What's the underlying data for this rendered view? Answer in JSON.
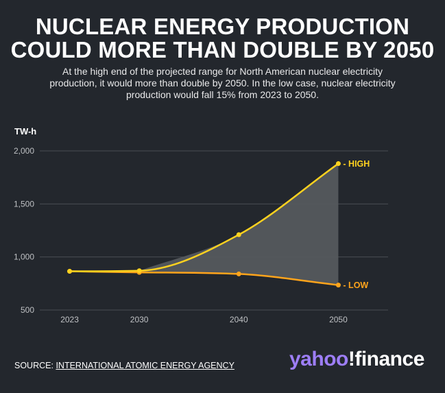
{
  "header": {
    "title_line1": "NUCLEAR ENERGY PRODUCTION",
    "title_line2": "COULD MORE THAN DOUBLE BY 2050",
    "subtitle": "At the high end of the projected range for North American nuclear electricity production, it would more than double by 2050. In the low case, nuclear electricity production would fall 15% from 2023 to 2050."
  },
  "chart_data": {
    "type": "area",
    "ylabel": "TW-h",
    "x": [
      2023,
      2030,
      2040,
      2050
    ],
    "x_ticks": [
      "2023",
      "2030",
      "2040",
      "2050"
    ],
    "y_ticks": [
      500,
      1000,
      1500,
      2000
    ],
    "y_tick_labels": [
      "500",
      "1,000",
      "1,500",
      "2,000"
    ],
    "ylim": [
      500,
      2000
    ],
    "xlim": [
      2020,
      2055
    ],
    "grid": true,
    "series": [
      {
        "name": "HIGH",
        "label": "- HIGH",
        "values": [
          865,
          870,
          1210,
          1880
        ],
        "color": "#ffd21f"
      },
      {
        "name": "LOW",
        "label": "- LOW",
        "values": [
          865,
          855,
          840,
          735
        ],
        "color": "#ffa41b"
      }
    ],
    "fill_color": "#55585d"
  },
  "footer": {
    "source_prefix": "SOURCE: ",
    "source_name": "INTERNATIONAL ATOMIC ENERGY AGENCY",
    "brand_yahoo": "yahoo",
    "brand_finance": "!finance"
  }
}
